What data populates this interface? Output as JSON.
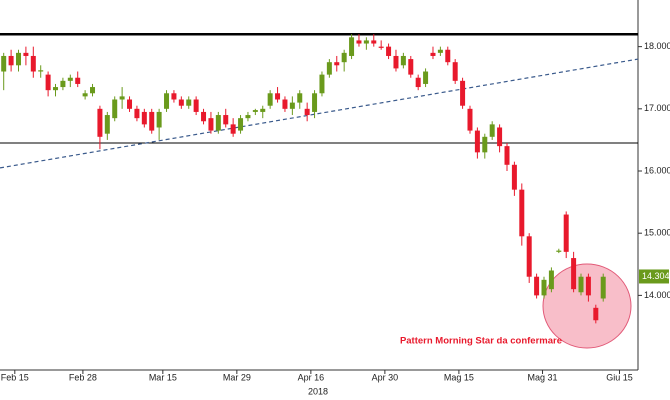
{
  "chart_data": {
    "type": "candlestick",
    "year_label": "2018",
    "annotation": "Pattern Morning Star da confermare",
    "up_color": "#6a9a1c",
    "down_color": "#e8192c",
    "ylim": [
      12.8,
      18.75
    ],
    "xlim": [
      -0.5,
      85.7
    ],
    "yticks": [
      {
        "value": 18,
        "label": "18.0000"
      },
      {
        "value": 17,
        "label": "17.0000"
      },
      {
        "value": 16,
        "label": "16.0000"
      },
      {
        "value": 15,
        "label": "15.0000"
      },
      {
        "value": 14,
        "label": "14.0000"
      }
    ],
    "xticks": [
      {
        "value": 1.5,
        "label": "Feb 15"
      },
      {
        "value": 10.7,
        "label": "Feb 28"
      },
      {
        "value": 21.5,
        "label": "Mar 15"
      },
      {
        "value": 31.5,
        "label": "Mar 29"
      },
      {
        "value": 41.5,
        "label": "Apr 16"
      },
      {
        "value": 51.5,
        "label": "Apr 30"
      },
      {
        "value": 61.5,
        "label": "Mag 15"
      },
      {
        "value": 72.8,
        "label": "Mag 31"
      },
      {
        "value": 83.2,
        "label": "Giu 15"
      }
    ],
    "last_price": {
      "value": 14.304,
      "label": "14.3040"
    },
    "resistance": 18.2,
    "support": 16.45,
    "trendline": [
      16.05,
      17.8
    ],
    "ohlc": [
      [
        17.6,
        17.9,
        17.3,
        17.85
      ],
      [
        17.85,
        17.95,
        17.6,
        17.7
      ],
      [
        17.7,
        17.95,
        17.6,
        17.9
      ],
      [
        17.9,
        18.0,
        17.7,
        17.85
      ],
      [
        17.85,
        18.0,
        17.5,
        17.6
      ],
      [
        17.6,
        17.7,
        17.5,
        17.62
      ],
      [
        17.55,
        17.6,
        17.2,
        17.3
      ],
      [
        17.3,
        17.4,
        17.2,
        17.35
      ],
      [
        17.35,
        17.5,
        17.3,
        17.45
      ],
      [
        17.45,
        17.55,
        17.35,
        17.5
      ],
      [
        17.5,
        17.6,
        17.35,
        17.4
      ],
      [
        17.2,
        17.3,
        17.15,
        17.25
      ],
      [
        17.25,
        17.4,
        17.2,
        17.35
      ],
      [
        17.0,
        17.05,
        16.35,
        16.55
      ],
      [
        16.6,
        16.95,
        16.5,
        16.9
      ],
      [
        16.85,
        17.2,
        16.8,
        17.15
      ],
      [
        17.15,
        17.35,
        17.0,
        17.2
      ],
      [
        17.15,
        17.2,
        16.95,
        17.0
      ],
      [
        17.0,
        17.05,
        16.8,
        16.85
      ],
      [
        16.95,
        17.0,
        16.7,
        16.75
      ],
      [
        16.95,
        17.0,
        16.6,
        16.65
      ],
      [
        16.7,
        17.0,
        16.5,
        16.95
      ],
      [
        17.0,
        17.3,
        16.95,
        17.25
      ],
      [
        17.25,
        17.3,
        17.1,
        17.15
      ],
      [
        17.15,
        17.2,
        17.0,
        17.05
      ],
      [
        17.05,
        17.2,
        17.0,
        17.15
      ],
      [
        17.15,
        17.2,
        16.9,
        16.95
      ],
      [
        16.95,
        17.0,
        16.75,
        16.8
      ],
      [
        16.85,
        16.95,
        16.6,
        16.65
      ],
      [
        16.65,
        16.95,
        16.6,
        16.9
      ],
      [
        16.9,
        17.0,
        16.7,
        16.75
      ],
      [
        16.75,
        16.85,
        16.55,
        16.6
      ],
      [
        16.65,
        16.9,
        16.6,
        16.85
      ],
      [
        16.85,
        16.95,
        16.8,
        16.9
      ],
      [
        16.95,
        17.0,
        16.9,
        16.98
      ],
      [
        16.95,
        17.05,
        16.85,
        17.0
      ],
      [
        17.05,
        17.3,
        17.0,
        17.25
      ],
      [
        17.25,
        17.35,
        17.1,
        17.15
      ],
      [
        17.15,
        17.2,
        16.95,
        17.0
      ],
      [
        17.0,
        17.2,
        16.9,
        17.1
      ],
      [
        17.1,
        17.3,
        17.0,
        17.25
      ],
      [
        17.0,
        17.1,
        16.8,
        16.9
      ],
      [
        16.95,
        17.3,
        16.85,
        17.25
      ],
      [
        17.25,
        17.6,
        17.2,
        17.55
      ],
      [
        17.55,
        17.8,
        17.5,
        17.75
      ],
      [
        17.75,
        17.85,
        17.6,
        17.7
      ],
      [
        17.75,
        17.95,
        17.6,
        17.9
      ],
      [
        17.85,
        18.2,
        17.8,
        18.15
      ],
      [
        18.1,
        18.2,
        18.0,
        18.05
      ],
      [
        18.05,
        18.15,
        17.95,
        18.1
      ],
      [
        18.1,
        18.2,
        18.0,
        18.05
      ],
      [
        18.0,
        18.1,
        17.95,
        17.98
      ],
      [
        18.0,
        18.05,
        17.8,
        17.85
      ],
      [
        17.85,
        17.95,
        17.6,
        17.65
      ],
      [
        17.7,
        17.9,
        17.65,
        17.85
      ],
      [
        17.8,
        17.85,
        17.5,
        17.55
      ],
      [
        17.5,
        17.55,
        17.3,
        17.35
      ],
      [
        17.4,
        17.65,
        17.35,
        17.6
      ],
      [
        17.9,
        18.0,
        17.8,
        17.85
      ],
      [
        17.9,
        18.0,
        17.85,
        17.95
      ],
      [
        17.95,
        18.0,
        17.7,
        17.75
      ],
      [
        17.75,
        17.8,
        17.4,
        17.45
      ],
      [
        17.45,
        17.5,
        17.0,
        17.05
      ],
      [
        17.0,
        17.05,
        16.6,
        16.65
      ],
      [
        16.65,
        16.7,
        16.2,
        16.3
      ],
      [
        16.3,
        16.6,
        16.2,
        16.55
      ],
      [
        16.55,
        16.8,
        16.5,
        16.75
      ],
      [
        16.7,
        16.75,
        16.3,
        16.4
      ],
      [
        16.4,
        16.45,
        16.0,
        16.1
      ],
      [
        16.1,
        16.15,
        15.6,
        15.7
      ],
      [
        15.7,
        15.8,
        14.8,
        14.95
      ],
      [
        14.95,
        15.0,
        14.2,
        14.3
      ],
      [
        14.3,
        14.35,
        13.95,
        14.0
      ],
      [
        14.0,
        14.3,
        13.95,
        14.25
      ],
      [
        14.1,
        14.45,
        14.05,
        14.4
      ],
      [
        14.7,
        14.75,
        14.68,
        14.72
      ],
      [
        15.3,
        15.35,
        14.6,
        14.7
      ],
      [
        14.6,
        14.7,
        14.05,
        14.1
      ],
      [
        14.05,
        14.35,
        14.0,
        14.3
      ],
      [
        14.3,
        14.35,
        13.9,
        14.0
      ],
      [
        13.8,
        13.85,
        13.55,
        13.6
      ],
      [
        13.95,
        14.35,
        13.9,
        14.3
      ]
    ]
  }
}
